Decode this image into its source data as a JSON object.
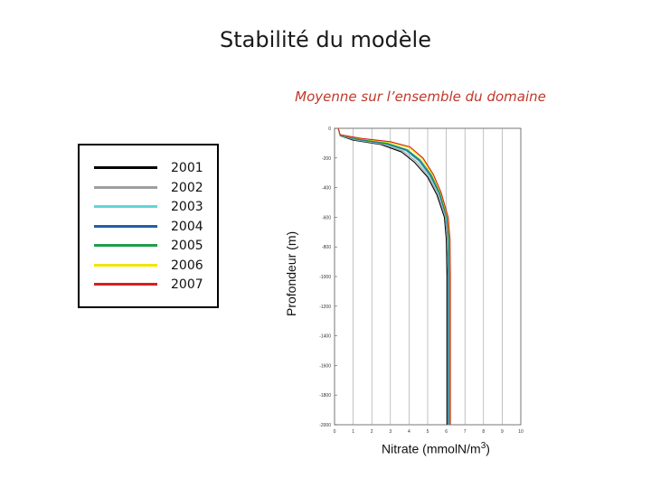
{
  "slide": {
    "title": "Stabilité du modèle"
  },
  "chart_data": {
    "type": "line",
    "title": "Moyenne sur l’ensemble du domaine",
    "xlabel": "Nitrate (mmolN/m",
    "xlabel_sup": "3",
    "xlabel_end": ")",
    "ylabel": "Profondeur (m)",
    "xlim": [
      0,
      10
    ],
    "ylim": [
      -2000,
      0
    ],
    "x_ticks": [
      "0",
      "1",
      "2",
      "3",
      "4",
      "5",
      "6",
      "7",
      "8",
      "9",
      "10"
    ],
    "y_ticks": [
      "0",
      "-200",
      "-400",
      "-600",
      "-800",
      "-1000",
      "-1200",
      "-1400",
      "-1600",
      "-1800",
      "-2000"
    ],
    "grid": true,
    "legend_position": "left",
    "series": [
      {
        "name": "2001",
        "color": "#000000",
        "points": [
          [
            0.2,
            0
          ],
          [
            0.3,
            -50
          ],
          [
            1.0,
            -80
          ],
          [
            2.5,
            -110
          ],
          [
            3.6,
            -160
          ],
          [
            4.3,
            -230
          ],
          [
            5.0,
            -330
          ],
          [
            5.5,
            -450
          ],
          [
            5.9,
            -600
          ],
          [
            6.0,
            -750
          ],
          [
            6.05,
            -1000
          ],
          [
            6.05,
            -1500
          ],
          [
            6.05,
            -2000
          ]
        ]
      },
      {
        "name": "2002",
        "color": "#9e9e9e",
        "points": [
          [
            0.2,
            0
          ],
          [
            0.3,
            -48
          ],
          [
            1.1,
            -78
          ],
          [
            2.6,
            -108
          ],
          [
            3.7,
            -155
          ],
          [
            4.4,
            -225
          ],
          [
            5.05,
            -325
          ],
          [
            5.55,
            -445
          ],
          [
            5.95,
            -600
          ],
          [
            6.05,
            -750
          ],
          [
            6.1,
            -1000
          ],
          [
            6.1,
            -1500
          ],
          [
            6.1,
            -2000
          ]
        ]
      },
      {
        "name": "2003",
        "color": "#5fd6d6",
        "points": [
          [
            0.2,
            0
          ],
          [
            0.3,
            -47
          ],
          [
            1.2,
            -76
          ],
          [
            2.7,
            -105
          ],
          [
            3.8,
            -150
          ],
          [
            4.5,
            -220
          ],
          [
            5.1,
            -320
          ],
          [
            5.6,
            -440
          ],
          [
            6.0,
            -600
          ],
          [
            6.1,
            -750
          ],
          [
            6.12,
            -1000
          ],
          [
            6.12,
            -1500
          ],
          [
            6.12,
            -2000
          ]
        ]
      },
      {
        "name": "2004",
        "color": "#1f5fa8",
        "points": [
          [
            0.2,
            0
          ],
          [
            0.3,
            -46
          ],
          [
            1.25,
            -75
          ],
          [
            2.75,
            -103
          ],
          [
            3.85,
            -147
          ],
          [
            4.55,
            -217
          ],
          [
            5.15,
            -318
          ],
          [
            5.62,
            -438
          ],
          [
            6.02,
            -600
          ],
          [
            6.12,
            -750
          ],
          [
            6.14,
            -1000
          ],
          [
            6.14,
            -1500
          ],
          [
            6.14,
            -2000
          ]
        ]
      },
      {
        "name": "2005",
        "color": "#1e9e4a",
        "points": [
          [
            0.2,
            0
          ],
          [
            0.3,
            -45
          ],
          [
            1.3,
            -73
          ],
          [
            2.8,
            -100
          ],
          [
            3.9,
            -143
          ],
          [
            4.6,
            -213
          ],
          [
            5.2,
            -315
          ],
          [
            5.65,
            -436
          ],
          [
            6.05,
            -600
          ],
          [
            6.15,
            -750
          ],
          [
            6.17,
            -1000
          ],
          [
            6.17,
            -1500
          ],
          [
            6.17,
            -2000
          ]
        ]
      },
      {
        "name": "2006",
        "color": "#f2e600",
        "points": [
          [
            0.2,
            0
          ],
          [
            0.3,
            -44
          ],
          [
            1.4,
            -70
          ],
          [
            2.9,
            -95
          ],
          [
            4.0,
            -130
          ],
          [
            4.7,
            -205
          ],
          [
            5.25,
            -312
          ],
          [
            5.7,
            -434
          ],
          [
            6.08,
            -600
          ],
          [
            6.18,
            -750
          ],
          [
            6.2,
            -1000
          ],
          [
            6.2,
            -1500
          ],
          [
            6.2,
            -2000
          ]
        ]
      },
      {
        "name": "2007",
        "color": "#d62020",
        "points": [
          [
            0.2,
            0
          ],
          [
            0.3,
            -43
          ],
          [
            1.45,
            -68
          ],
          [
            3.0,
            -90
          ],
          [
            4.05,
            -125
          ],
          [
            4.75,
            -200
          ],
          [
            5.3,
            -310
          ],
          [
            5.72,
            -432
          ],
          [
            6.1,
            -600
          ],
          [
            6.2,
            -750
          ],
          [
            6.22,
            -1000
          ],
          [
            6.22,
            -1500
          ],
          [
            6.22,
            -2000
          ]
        ]
      }
    ]
  }
}
